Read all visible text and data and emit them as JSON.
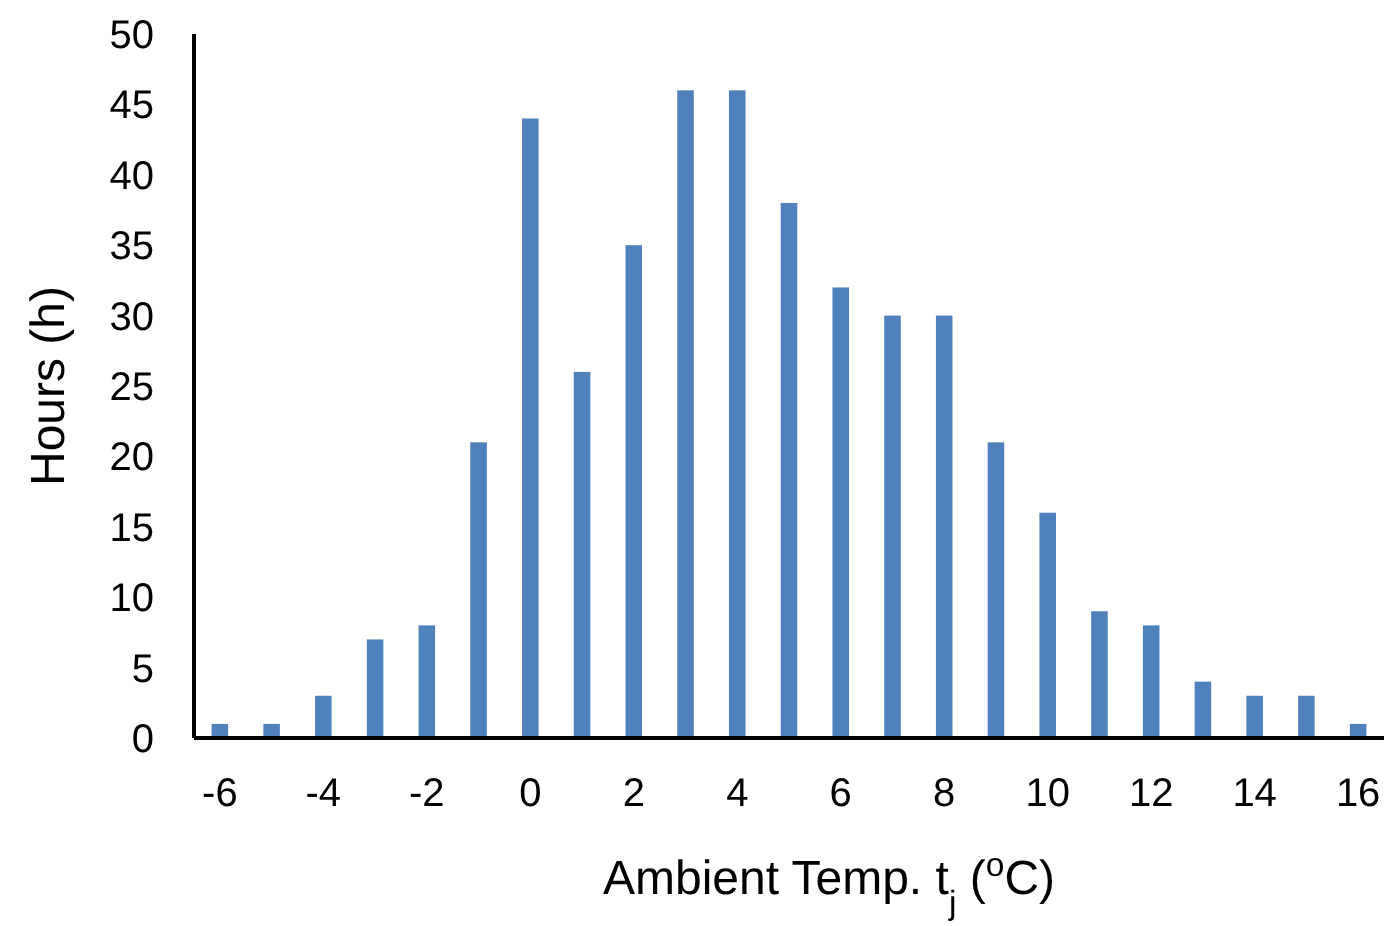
{
  "chart_data": {
    "type": "bar",
    "xlabel": "Ambient Temp. t$_{j}$  ($^{o}$C)",
    "ylabel": "Hours  (h)",
    "categories": [
      "-6",
      null,
      "-4",
      null,
      "-2",
      null,
      "0",
      null,
      "2",
      null,
      "4",
      null,
      "6",
      null,
      "8",
      null,
      "10",
      null,
      "12",
      null,
      "14",
      null,
      "16"
    ],
    "values": [
      1,
      1,
      3,
      7,
      8,
      21,
      44,
      26,
      35,
      46,
      46,
      38,
      32,
      30,
      30,
      21,
      16,
      9,
      8,
      4,
      3,
      3,
      1
    ],
    "color": "#4f81bd",
    "ylim": [
      0,
      50
    ],
    "yticks": [
      0,
      5,
      10,
      15,
      20,
      25,
      30,
      35,
      40,
      45,
      50
    ],
    "grid": false
  }
}
